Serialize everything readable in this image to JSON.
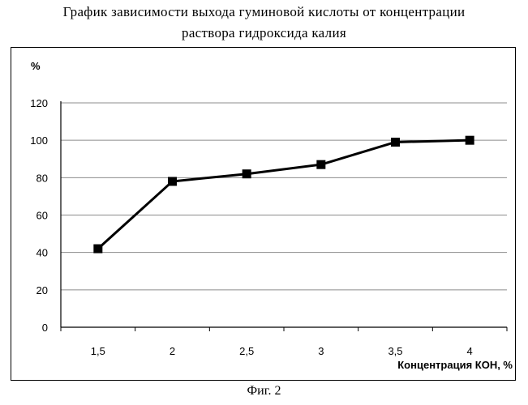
{
  "title_lines": [
    "График зависимости выхода гуминовой кислоты от концентрации",
    "раствора гидроксида калия"
  ],
  "caption": "Фиг. 2",
  "chart_data": {
    "type": "line",
    "title": "График зависимости выхода гуминовой кислоты от концентрации раствора гидроксида калия",
    "xlabel": "Концентрация КОН, %",
    "ylabel": "%",
    "categories": [
      "1,5",
      "2",
      "2,5",
      "3",
      "3,5",
      "4"
    ],
    "values": [
      42,
      78,
      82,
      87,
      99,
      100
    ],
    "ylim": [
      0,
      120
    ],
    "yticks": [
      0,
      20,
      40,
      60,
      80,
      100,
      120
    ],
    "grid": "horizontal",
    "marker": "square",
    "line_color": "#000000"
  }
}
